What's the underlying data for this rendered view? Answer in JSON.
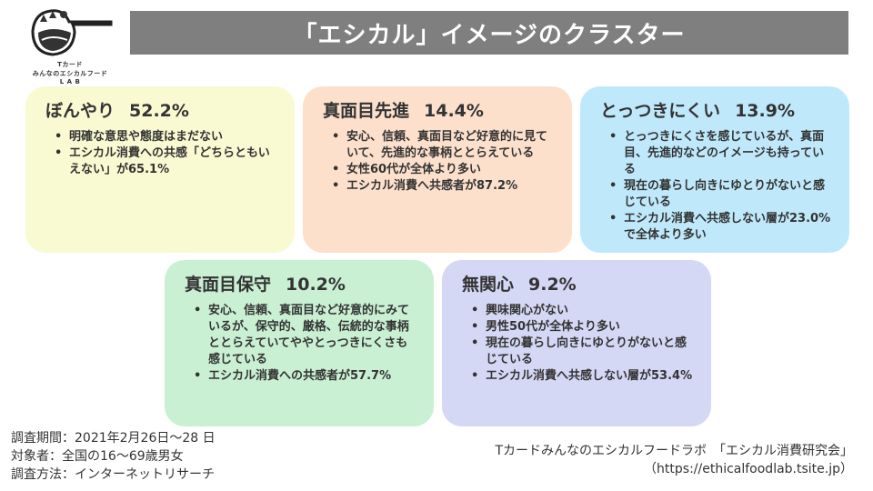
{
  "title": "「エシカル」イメージのクラスター",
  "logo": {
    "line1": "Tカード",
    "line2": "みんなのエシカルフード",
    "line3": "L A B"
  },
  "clusters": [
    {
      "name": "ぼんやり",
      "percent": "52.2%",
      "color": "#fafad2",
      "bullets": [
        "明確な意思や態度はまだない",
        "エシカル消費への共感「どちらともいえない」が65.1%"
      ]
    },
    {
      "name": "真面目先進",
      "percent": "14.4%",
      "color": "#fde0cc",
      "bullets": [
        "安心、信頼、真面目など好意的に見ていて、先進的な事柄ととらえている",
        "女性60代が全体より多い",
        "エシカル消費へ共感者が87.2%"
      ]
    },
    {
      "name": "とっつきにくい",
      "percent": "13.9%",
      "color": "#bfe9fb",
      "bullets": [
        "とっつきにくさを感じているが、真面目、先進的などのイメージも持っている",
        "現在の暮らし向きにゆとりがないと感じている",
        "エシカル消費へ共感しない層が23.0%で全体より多い"
      ]
    },
    {
      "name": "真面目保守",
      "percent": "10.2%",
      "color": "#c9f0d3",
      "bullets": [
        "安心、信頼、真面目など好意的にみているが、保守的、厳格、伝統的な事柄ととらえていてややとっつきにくさも感じている",
        "エシカル消費への共感者が57.7%"
      ]
    },
    {
      "name": "無関心",
      "percent": "9.2%",
      "color": "#d5d8f5",
      "bullets": [
        "興味関心がない",
        "男性50代が全体より多い",
        "現在の暮らし向きにゆとりがないと感じている",
        "エシカル消費へ共感しない層が53.4%"
      ]
    }
  ],
  "survey": {
    "period": "調査期間：2021年2月26日～28 日",
    "target": "対象者：全国の16～69歳男女",
    "method": "調査方法：インターネットリサーチ"
  },
  "source": {
    "org": "Tカードみんなのエシカルフードラボ　「エシカル消費研究会」",
    "url": "（https://ethicalfoodlab.tsite.jp）"
  }
}
